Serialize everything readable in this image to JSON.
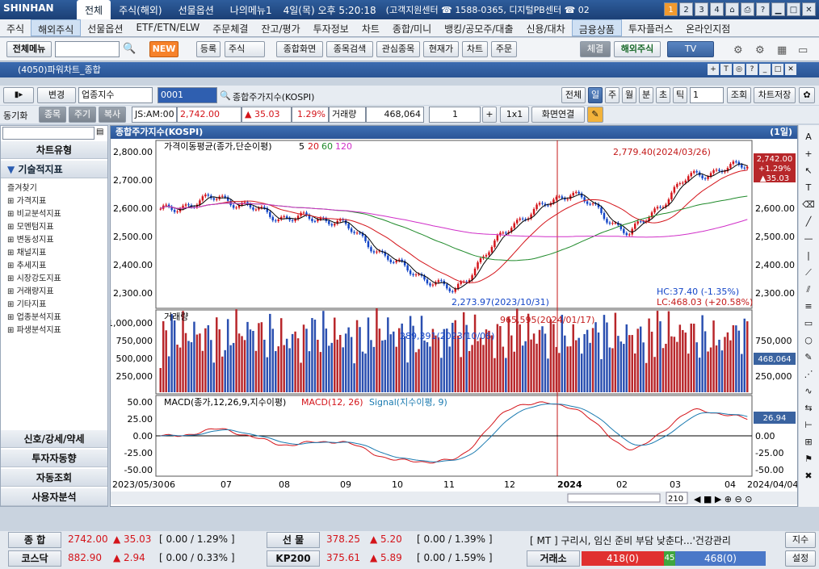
{
  "titlebar": {
    "logo": "SHINHAN",
    "tabs": [
      "전체",
      "주식(해외)",
      "선물옵션",
      "나의메뉴1"
    ],
    "datetime": "4일(목) 오후 5:20:18",
    "center": "(고객지원센터 ☎ 1588-0365, 디지털PB센터 ☎ 02",
    "page_buttons": [
      "1",
      "2",
      "3",
      "4"
    ]
  },
  "menubar": [
    "주식",
    "해외주식",
    "선물옵션",
    "ETF/ETN/ELW",
    "주문체결",
    "잔고/평가",
    "투자정보",
    "차트",
    "종합/미니",
    "뱅킹/공모주/대출",
    "신용/대차",
    "금융상품",
    "투자플러스",
    "온라인지점"
  ],
  "toolbar": {
    "all_menu": "전체메뉴",
    "new_badge": "NEW",
    "buttons": [
      "등록",
      "주식",
      "종합화면",
      "종목검색",
      "관심종목",
      "현재가",
      "차트",
      "주문"
    ],
    "right_buttons": [
      "체결",
      "해외주식",
      "TV"
    ]
  },
  "window": {
    "title": "(4050)파워차트_종합"
  },
  "controls": {
    "change": "변경",
    "sector_select": "업종지수",
    "code": "0001",
    "name": "종합주가지수(KOSPI)",
    "periods": [
      "전체",
      "일",
      "주",
      "월",
      "분",
      "초",
      "틱"
    ],
    "period_count": "1",
    "query": "조회",
    "save": "차트저장",
    "sync": "동기화",
    "tabs2": [
      "종목",
      "주기",
      "복사"
    ],
    "time_code": "JS:AM:00",
    "price": "2,742.00",
    "change_val": "▲ 35.03",
    "change_pct": "1.29%",
    "volume_label": "거래량",
    "volume": "468,064",
    "count": "1",
    "ratio": "1x1",
    "link": "화면연결"
  },
  "sidebar": {
    "chart_type": "차트유형",
    "tech": "기술적지표",
    "items": [
      "즐겨찾기",
      "가격지표",
      "비교분석지표",
      "모멘텀지표",
      "변동성지표",
      "채널지표",
      "추세지표",
      "시장강도지표",
      "거래량지표",
      "기타지표",
      "업종분석지표",
      "파생분석지표"
    ],
    "bottom": [
      "신호/강세/약세",
      "투자자동향",
      "자동조회",
      "사용자분석"
    ]
  },
  "chart": {
    "header": "종합주가지수(KOSPI)",
    "period_label": "(1일)",
    "price_legend": "가격이동평균(종가,단순이평)",
    "ma": [
      "5",
      "20",
      "60",
      "120"
    ],
    "ma_colors": [
      "#000000",
      "#d4141a",
      "#1f8a2a",
      "#d02fc8"
    ],
    "high_annot": "2,779.40(2024/03/26)",
    "low_annot": "2,273.97(2023/10/31)",
    "hc": "HC:37.40 (-1.35%)",
    "lc": "LC:468.03 (+20.58%)",
    "price_ticks": [
      "2,800.00",
      "2,700.00",
      "2,600.00",
      "2,500.00",
      "2,400.00",
      "2,300.00"
    ],
    "right_price_ticks": [
      "2,600.00",
      "2,500.00",
      "2,400.00",
      "2,300.00"
    ],
    "last_price": "2,742.00",
    "last_pct": "+1.29%",
    "last_chg": "▲35.03",
    "vol_legend": "거래량",
    "vol_ticks": [
      "1,000,000",
      "750,000",
      "500,000",
      "250,000"
    ],
    "vol_annot1": "965,595(2024/01/17)",
    "vol_annot2": "289,391(2023/10/06)",
    "vol_last": "468,064",
    "macd_legend": "MACD(종가,12,26,9,지수이평)",
    "macd_name": "MACD(12, 26)",
    "signal_name": "Signal(지수이평, 9)",
    "macd_ticks": [
      "50.00",
      "25.00",
      "0.00",
      "-25.00",
      "-50.00"
    ],
    "macd_last": "26.94",
    "x_labels": [
      "2023/05/30",
      "06",
      "07",
      "08",
      "09",
      "10",
      "11",
      "12",
      "2024",
      "02",
      "03",
      "04",
      "2024/04/04"
    ],
    "zoom_count": "210"
  },
  "chart_data": {
    "type": "line",
    "title": "종합주가지수(KOSPI)",
    "x": [
      "2023-06",
      "2023-07",
      "2023-08",
      "2023-09",
      "2023-10",
      "2023-11",
      "2023-12",
      "2024-01",
      "2024-02",
      "2024-03",
      "2024-04"
    ],
    "series": [
      {
        "name": "종가",
        "values": [
          2580,
          2630,
          2560,
          2550,
          2400,
          2300,
          2540,
          2650,
          2500,
          2700,
          2742
        ]
      }
    ],
    "ylim": [
      2250,
      2820
    ]
  },
  "status": {
    "kospi_label": "종 합",
    "kospi": "2742.00",
    "kospi_chg": "▲ 35.03",
    "kospi_box": "[ 0.00 / 1.29% ]",
    "fut_label": "선 물",
    "fut": "378.25",
    "fut_chg": "▲ 5.20",
    "fut_box": "[ 0.00 / 1.39% ]",
    "news": "[ MT ] 구리시, 임신 준비 부담 낮춘다...'건강관리",
    "jisu": "지수",
    "kosdaq_label": "코스닥",
    "kosdaq": "882.90",
    "kosdaq_chg": "▲ 2.94",
    "kosdaq_box": "[ 0.00 / 0.33% ]",
    "kp_label": "KP200",
    "kp": "375.61",
    "kp_chg": "▲ 5.89",
    "kp_box": "[ 0.00 / 1.59% ]",
    "exchange_label": "거래소",
    "ex_up": "418(0)",
    "ex_mid": "45",
    "ex_down": "468(0)",
    "settings": "설정"
  }
}
